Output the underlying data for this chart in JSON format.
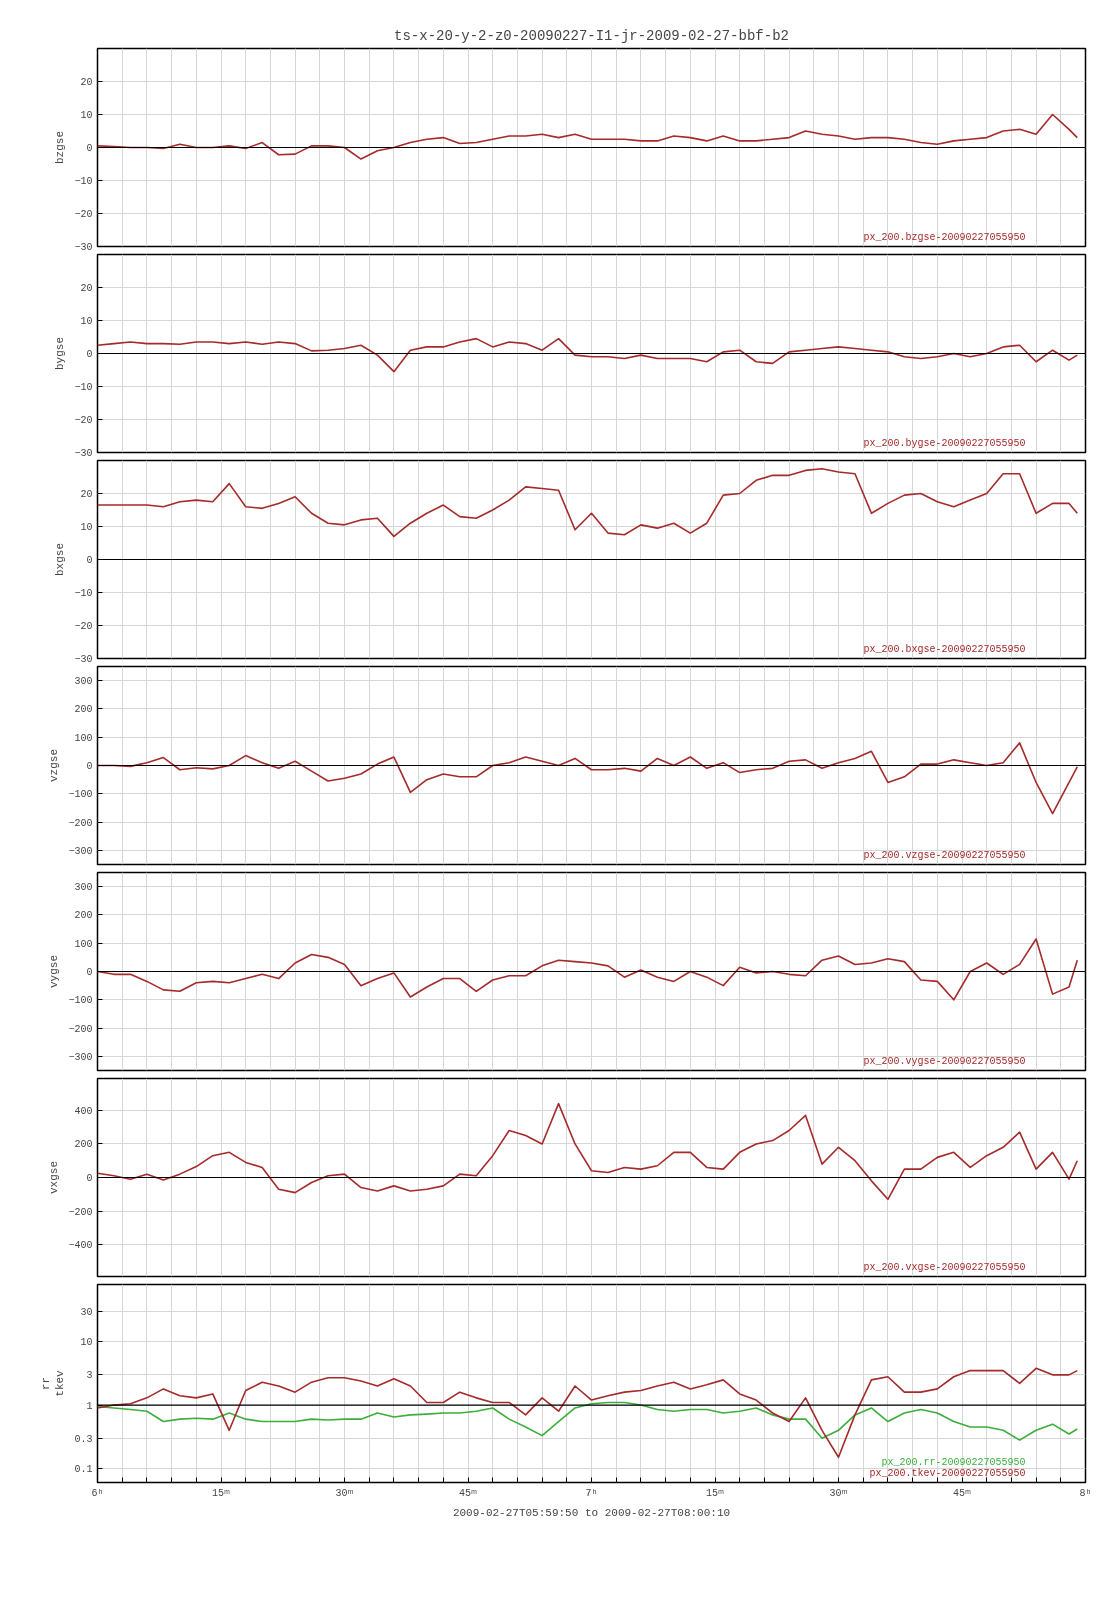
{
  "chart_data": [
    {
      "type": "line",
      "title": "ts-x-20-y-2-z0-20090227-I1-jr-2009-02-27-bbf-b2",
      "ylabel": "bzgse",
      "xlim": [
        "2009-02-27T06:00",
        "2009-02-27T08:00"
      ],
      "ylim": [
        -30,
        30
      ],
      "yticks": [
        -30,
        -20,
        -10,
        0,
        10,
        20
      ],
      "tick_labels": "y",
      "grid": true,
      "ref_lines": [
        {
          "axis": "y",
          "value": 0,
          "color": "#000000"
        }
      ],
      "xticks": [
        "2009-02-27T06:00",
        "2009-02-27T06:03",
        "2009-02-27T06:06",
        "2009-02-27T06:09",
        "2009-02-27T06:12",
        "2009-02-27T06:15",
        "2009-02-27T06:18",
        "2009-02-27T06:21",
        "2009-02-27T06:24",
        "2009-02-27T06:27",
        "2009-02-27T06:30",
        "2009-02-27T06:33",
        "2009-02-27T06:36",
        "2009-02-27T06:39",
        "2009-02-27T06:42",
        "2009-02-27T06:45",
        "2009-02-27T06:48",
        "2009-02-27T06:51",
        "2009-02-27T06:54",
        "2009-02-27T06:57",
        "2009-02-27T07:00",
        "2009-02-27T07:03",
        "2009-02-27T07:06",
        "2009-02-27T07:09",
        "2009-02-27T07:12",
        "2009-02-27T07:15",
        "2009-02-27T07:18",
        "2009-02-27T07:21",
        "2009-02-27T07:24",
        "2009-02-27T07:27",
        "2009-02-27T07:30",
        "2009-02-27T07:33",
        "2009-02-27T07:36",
        "2009-02-27T07:39",
        "2009-02-27T07:42",
        "2009-02-27T07:45",
        "2009-02-27T07:48",
        "2009-02-27T07:51",
        "2009-02-27T07:54",
        "2009-02-27T07:57",
        "2009-02-27T08:00"
      ],
      "x": [
        "2009-02-27T06:00",
        "2009-02-27T06:02",
        "2009-02-27T06:04",
        "2009-02-27T06:06",
        "2009-02-27T06:08",
        "2009-02-27T06:10",
        "2009-02-27T06:12",
        "2009-02-27T06:14",
        "2009-02-27T06:16",
        "2009-02-27T06:18",
        "2009-02-27T06:20",
        "2009-02-27T06:22",
        "2009-02-27T06:24",
        "2009-02-27T06:26",
        "2009-02-27T06:28",
        "2009-02-27T06:30",
        "2009-02-27T06:32",
        "2009-02-27T06:34",
        "2009-02-27T06:36",
        "2009-02-27T06:38",
        "2009-02-27T06:40",
        "2009-02-27T06:42",
        "2009-02-27T06:44",
        "2009-02-27T06:46",
        "2009-02-27T06:48",
        "2009-02-27T06:50",
        "2009-02-27T06:52",
        "2009-02-27T06:54",
        "2009-02-27T06:56",
        "2009-02-27T06:58",
        "2009-02-27T07:00",
        "2009-02-27T07:02",
        "2009-02-27T07:04",
        "2009-02-27T07:06",
        "2009-02-27T07:08",
        "2009-02-27T07:10",
        "2009-02-27T07:12",
        "2009-02-27T07:14",
        "2009-02-27T07:16",
        "2009-02-27T07:18",
        "2009-02-27T07:20",
        "2009-02-27T07:22",
        "2009-02-27T07:24",
        "2009-02-27T07:26",
        "2009-02-27T07:28",
        "2009-02-27T07:30",
        "2009-02-27T07:32",
        "2009-02-27T07:34",
        "2009-02-27T07:36",
        "2009-02-27T07:38",
        "2009-02-27T07:40",
        "2009-02-27T07:42",
        "2009-02-27T07:44",
        "2009-02-27T07:46",
        "2009-02-27T07:48",
        "2009-02-27T07:50",
        "2009-02-27T07:52",
        "2009-02-27T07:54",
        "2009-02-27T07:56",
        "2009-02-27T07:58",
        "2009-02-27T07:59"
      ],
      "series": [
        {
          "name": "px_200.bzgse-20090227055950",
          "color": "#a52a2a",
          "values": [
            0.5,
            0.3,
            0,
            0,
            -0.3,
            1,
            0,
            0,
            0.5,
            -0.3,
            1.5,
            -2.2,
            -2,
            0.5,
            0.5,
            0,
            -3.5,
            -1,
            0,
            1.5,
            2.5,
            3,
            1.2,
            1.5,
            2.5,
            3.5,
            3.5,
            4,
            3,
            4,
            2.5,
            2.5,
            2.5,
            2,
            2,
            3.5,
            3,
            2,
            3.5,
            2,
            2,
            2.5,
            3,
            5,
            4,
            3.5,
            2.5,
            3,
            3,
            2.5,
            1.5,
            1,
            2,
            2.5,
            3,
            5,
            5.5,
            4,
            10,
            5.5,
            3
          ]
        }
      ]
    },
    {
      "type": "line",
      "ylabel": "bygse",
      "xlim": [
        "2009-02-27T06:00",
        "2009-02-27T08:00"
      ],
      "ylim": [
        -30,
        30
      ],
      "yticks": [
        -30,
        -20,
        -10,
        0,
        10,
        20
      ],
      "tick_labels": "y",
      "grid": true,
      "ref_lines": [
        {
          "axis": "y",
          "value": 0,
          "color": "#000000"
        }
      ],
      "xticks": [
        "2009-02-27T06:00",
        "2009-02-27T06:03",
        "2009-02-27T06:06",
        "2009-02-27T06:09",
        "2009-02-27T06:12",
        "2009-02-27T06:15",
        "2009-02-27T06:18",
        "2009-02-27T06:21",
        "2009-02-27T06:24",
        "2009-02-27T06:27",
        "2009-02-27T06:30",
        "2009-02-27T06:33",
        "2009-02-27T06:36",
        "2009-02-27T06:39",
        "2009-02-27T06:42",
        "2009-02-27T06:45",
        "2009-02-27T06:48",
        "2009-02-27T06:51",
        "2009-02-27T06:54",
        "2009-02-27T06:57",
        "2009-02-27T07:00",
        "2009-02-27T07:03",
        "2009-02-27T07:06",
        "2009-02-27T07:09",
        "2009-02-27T07:12",
        "2009-02-27T07:15",
        "2009-02-27T07:18",
        "2009-02-27T07:21",
        "2009-02-27T07:24",
        "2009-02-27T07:27",
        "2009-02-27T07:30",
        "2009-02-27T07:33",
        "2009-02-27T07:36",
        "2009-02-27T07:39",
        "2009-02-27T07:42",
        "2009-02-27T07:45",
        "2009-02-27T07:48",
        "2009-02-27T07:51",
        "2009-02-27T07:54",
        "2009-02-27T07:57",
        "2009-02-27T08:00"
      ],
      "x": [
        "2009-02-27T06:00",
        "2009-02-27T06:02",
        "2009-02-27T06:04",
        "2009-02-27T06:06",
        "2009-02-27T06:08",
        "2009-02-27T06:10",
        "2009-02-27T06:12",
        "2009-02-27T06:14",
        "2009-02-27T06:16",
        "2009-02-27T06:18",
        "2009-02-27T06:20",
        "2009-02-27T06:22",
        "2009-02-27T06:24",
        "2009-02-27T06:26",
        "2009-02-27T06:28",
        "2009-02-27T06:30",
        "2009-02-27T06:32",
        "2009-02-27T06:34",
        "2009-02-27T06:36",
        "2009-02-27T06:38",
        "2009-02-27T06:40",
        "2009-02-27T06:42",
        "2009-02-27T06:44",
        "2009-02-27T06:46",
        "2009-02-27T06:48",
        "2009-02-27T06:50",
        "2009-02-27T06:52",
        "2009-02-27T06:54",
        "2009-02-27T06:56",
        "2009-02-27T06:58",
        "2009-02-27T07:00",
        "2009-02-27T07:02",
        "2009-02-27T07:04",
        "2009-02-27T07:06",
        "2009-02-27T07:08",
        "2009-02-27T07:10",
        "2009-02-27T07:12",
        "2009-02-27T07:14",
        "2009-02-27T07:16",
        "2009-02-27T07:18",
        "2009-02-27T07:20",
        "2009-02-27T07:22",
        "2009-02-27T07:24",
        "2009-02-27T07:26",
        "2009-02-27T07:28",
        "2009-02-27T07:30",
        "2009-02-27T07:32",
        "2009-02-27T07:34",
        "2009-02-27T07:36",
        "2009-02-27T07:38",
        "2009-02-27T07:40",
        "2009-02-27T07:42",
        "2009-02-27T07:44",
        "2009-02-27T07:46",
        "2009-02-27T07:48",
        "2009-02-27T07:50",
        "2009-02-27T07:52",
        "2009-02-27T07:54",
        "2009-02-27T07:56",
        "2009-02-27T07:58",
        "2009-02-27T07:59"
      ],
      "series": [
        {
          "name": "px_200.bygse-20090227055950",
          "color": "#a52a2a",
          "values": [
            2.5,
            3,
            3.5,
            3,
            3,
            2.8,
            3.5,
            3.5,
            3,
            3.5,
            2.8,
            3.5,
            3,
            0.8,
            1,
            1.5,
            2.5,
            -0.5,
            -5.5,
            1,
            2,
            2,
            3.5,
            4.5,
            2,
            3.5,
            3,
            1,
            4.5,
            -0.5,
            -1,
            -1,
            -1.5,
            -0.5,
            -1.5,
            -1.5,
            -1.5,
            -2.5,
            0.5,
            1,
            -2.5,
            -3,
            0.5,
            1,
            1.5,
            2,
            1.5,
            1,
            0.5,
            -1,
            -1.5,
            -1,
            0,
            -1,
            0,
            2,
            2.5,
            -2.5,
            1,
            -2,
            -0.5
          ]
        }
      ]
    },
    {
      "type": "line",
      "ylabel": "bxgse",
      "xlim": [
        "2009-02-27T06:00",
        "2009-02-27T08:00"
      ],
      "ylim": [
        -30,
        30
      ],
      "yticks": [
        -30,
        -20,
        -10,
        0,
        10,
        20
      ],
      "tick_labels": "y",
      "grid": true,
      "ref_lines": [
        {
          "axis": "y",
          "value": 0,
          "color": "#000000"
        }
      ],
      "xticks": [
        "2009-02-27T06:00",
        "2009-02-27T06:03",
        "2009-02-27T06:06",
        "2009-02-27T06:09",
        "2009-02-27T06:12",
        "2009-02-27T06:15",
        "2009-02-27T06:18",
        "2009-02-27T06:21",
        "2009-02-27T06:24",
        "2009-02-27T06:27",
        "2009-02-27T06:30",
        "2009-02-27T06:33",
        "2009-02-27T06:36",
        "2009-02-27T06:39",
        "2009-02-27T06:42",
        "2009-02-27T06:45",
        "2009-02-27T06:48",
        "2009-02-27T06:51",
        "2009-02-27T06:54",
        "2009-02-27T06:57",
        "2009-02-27T07:00",
        "2009-02-27T07:03",
        "2009-02-27T07:06",
        "2009-02-27T07:09",
        "2009-02-27T07:12",
        "2009-02-27T07:15",
        "2009-02-27T07:18",
        "2009-02-27T07:21",
        "2009-02-27T07:24",
        "2009-02-27T07:27",
        "2009-02-27T07:30",
        "2009-02-27T07:33",
        "2009-02-27T07:36",
        "2009-02-27T07:39",
        "2009-02-27T07:42",
        "2009-02-27T07:45",
        "2009-02-27T07:48",
        "2009-02-27T07:51",
        "2009-02-27T07:54",
        "2009-02-27T07:57",
        "2009-02-27T08:00"
      ],
      "x": [
        "2009-02-27T06:00",
        "2009-02-27T06:02",
        "2009-02-27T06:04",
        "2009-02-27T06:06",
        "2009-02-27T06:08",
        "2009-02-27T06:10",
        "2009-02-27T06:12",
        "2009-02-27T06:14",
        "2009-02-27T06:16",
        "2009-02-27T06:18",
        "2009-02-27T06:20",
        "2009-02-27T06:22",
        "2009-02-27T06:24",
        "2009-02-27T06:26",
        "2009-02-27T06:28",
        "2009-02-27T06:30",
        "2009-02-27T06:32",
        "2009-02-27T06:34",
        "2009-02-27T06:36",
        "2009-02-27T06:38",
        "2009-02-27T06:40",
        "2009-02-27T06:42",
        "2009-02-27T06:44",
        "2009-02-27T06:46",
        "2009-02-27T06:48",
        "2009-02-27T06:50",
        "2009-02-27T06:52",
        "2009-02-27T06:54",
        "2009-02-27T06:56",
        "2009-02-27T06:58",
        "2009-02-27T07:00",
        "2009-02-27T07:02",
        "2009-02-27T07:04",
        "2009-02-27T07:06",
        "2009-02-27T07:08",
        "2009-02-27T07:10",
        "2009-02-27T07:12",
        "2009-02-27T07:14",
        "2009-02-27T07:16",
        "2009-02-27T07:18",
        "2009-02-27T07:20",
        "2009-02-27T07:22",
        "2009-02-27T07:24",
        "2009-02-27T07:26",
        "2009-02-27T07:28",
        "2009-02-27T07:30",
        "2009-02-27T07:32",
        "2009-02-27T07:34",
        "2009-02-27T07:36",
        "2009-02-27T07:38",
        "2009-02-27T07:40",
        "2009-02-27T07:42",
        "2009-02-27T07:44",
        "2009-02-27T07:46",
        "2009-02-27T07:48",
        "2009-02-27T07:50",
        "2009-02-27T07:52",
        "2009-02-27T07:54",
        "2009-02-27T07:56",
        "2009-02-27T07:58",
        "2009-02-27T07:59"
      ],
      "series": [
        {
          "name": "px_200.bxgse-20090227055950",
          "color": "#a52a2a",
          "values": [
            16.5,
            16.5,
            16.5,
            16.5,
            16,
            17.5,
            18,
            17.5,
            23,
            16,
            15.5,
            17,
            19,
            14,
            11,
            10.5,
            12,
            12.5,
            7,
            11,
            14,
            16.5,
            13,
            12.5,
            15,
            18,
            22,
            21.5,
            21,
            9,
            14,
            8,
            7.5,
            10.5,
            9.5,
            11,
            8,
            11,
            19.5,
            20,
            24,
            25.5,
            25.5,
            27,
            27.5,
            26.5,
            26,
            14,
            17,
            19.5,
            20,
            17.5,
            16,
            18,
            20,
            26,
            26,
            14,
            17,
            17,
            14
          ]
        }
      ]
    },
    {
      "type": "line",
      "ylabel": "vzgse",
      "xlim": [
        "2009-02-27T06:00",
        "2009-02-27T08:00"
      ],
      "ylim": [
        -350,
        350
      ],
      "yticks": [
        -300,
        -200,
        -100,
        0,
        100,
        200,
        300
      ],
      "tick_labels": "y",
      "grid": true,
      "ref_lines": [
        {
          "axis": "y",
          "value": 0,
          "color": "#000000"
        }
      ],
      "xticks": [
        "2009-02-27T06:00",
        "2009-02-27T06:03",
        "2009-02-27T06:06",
        "2009-02-27T06:09",
        "2009-02-27T06:12",
        "2009-02-27T06:15",
        "2009-02-27T06:18",
        "2009-02-27T06:21",
        "2009-02-27T06:24",
        "2009-02-27T06:27",
        "2009-02-27T06:30",
        "2009-02-27T06:33",
        "2009-02-27T06:36",
        "2009-02-27T06:39",
        "2009-02-27T06:42",
        "2009-02-27T06:45",
        "2009-02-27T06:48",
        "2009-02-27T06:51",
        "2009-02-27T06:54",
        "2009-02-27T06:57",
        "2009-02-27T07:00",
        "2009-02-27T07:03",
        "2009-02-27T07:06",
        "2009-02-27T07:09",
        "2009-02-27T07:12",
        "2009-02-27T07:15",
        "2009-02-27T07:18",
        "2009-02-27T07:21",
        "2009-02-27T07:24",
        "2009-02-27T07:27",
        "2009-02-27T07:30",
        "2009-02-27T07:33",
        "2009-02-27T07:36",
        "2009-02-27T07:39",
        "2009-02-27T07:42",
        "2009-02-27T07:45",
        "2009-02-27T07:48",
        "2009-02-27T07:51",
        "2009-02-27T07:54",
        "2009-02-27T07:57",
        "2009-02-27T08:00"
      ],
      "x": [
        "2009-02-27T06:00",
        "2009-02-27T06:02",
        "2009-02-27T06:04",
        "2009-02-27T06:06",
        "2009-02-27T06:08",
        "2009-02-27T06:10",
        "2009-02-27T06:12",
        "2009-02-27T06:14",
        "2009-02-27T06:16",
        "2009-02-27T06:18",
        "2009-02-27T06:20",
        "2009-02-27T06:22",
        "2009-02-27T06:24",
        "2009-02-27T06:26",
        "2009-02-27T06:28",
        "2009-02-27T06:30",
        "2009-02-27T06:32",
        "2009-02-27T06:34",
        "2009-02-27T06:36",
        "2009-02-27T06:38",
        "2009-02-27T06:40",
        "2009-02-27T06:42",
        "2009-02-27T06:44",
        "2009-02-27T06:46",
        "2009-02-27T06:48",
        "2009-02-27T06:50",
        "2009-02-27T06:52",
        "2009-02-27T06:54",
        "2009-02-27T06:56",
        "2009-02-27T06:58",
        "2009-02-27T07:00",
        "2009-02-27T07:02",
        "2009-02-27T07:04",
        "2009-02-27T07:06",
        "2009-02-27T07:08",
        "2009-02-27T07:10",
        "2009-02-27T07:12",
        "2009-02-27T07:14",
        "2009-02-27T07:16",
        "2009-02-27T07:18",
        "2009-02-27T07:20",
        "2009-02-27T07:22",
        "2009-02-27T07:24",
        "2009-02-27T07:26",
        "2009-02-27T07:28",
        "2009-02-27T07:30",
        "2009-02-27T07:32",
        "2009-02-27T07:34",
        "2009-02-27T07:36",
        "2009-02-27T07:38",
        "2009-02-27T07:40",
        "2009-02-27T07:42",
        "2009-02-27T07:44",
        "2009-02-27T07:46",
        "2009-02-27T07:48",
        "2009-02-27T07:50",
        "2009-02-27T07:52",
        "2009-02-27T07:54",
        "2009-02-27T07:56",
        "2009-02-27T07:58",
        "2009-02-27T07:59"
      ],
      "series": [
        {
          "name": "px_200.vzgse-20090227055950",
          "color": "#a52a2a",
          "values": [
            0,
            0,
            -3,
            10,
            28,
            -15,
            -8,
            -12,
            0,
            35,
            10,
            -10,
            15,
            -20,
            -55,
            -45,
            -30,
            5,
            30,
            -95,
            -50,
            -30,
            -40,
            -40,
            0,
            10,
            30,
            15,
            0,
            25,
            -15,
            -15,
            -10,
            -20,
            25,
            0,
            30,
            -10,
            10,
            -25,
            -15,
            -10,
            15,
            20,
            -10,
            10,
            25,
            50,
            -60,
            -40,
            5,
            5,
            20,
            10,
            0,
            10,
            80,
            -60,
            -170,
            -60,
            -5
          ]
        }
      ]
    },
    {
      "type": "line",
      "ylabel": "vygse",
      "xlim": [
        "2009-02-27T06:00",
        "2009-02-27T08:00"
      ],
      "ylim": [
        -350,
        350
      ],
      "yticks": [
        -300,
        -200,
        -100,
        0,
        100,
        200,
        300
      ],
      "tick_labels": "y",
      "grid": true,
      "ref_lines": [
        {
          "axis": "y",
          "value": 0,
          "color": "#000000"
        }
      ],
      "xticks": [
        "2009-02-27T06:00",
        "2009-02-27T06:03",
        "2009-02-27T06:06",
        "2009-02-27T06:09",
        "2009-02-27T06:12",
        "2009-02-27T06:15",
        "2009-02-27T06:18",
        "2009-02-27T06:21",
        "2009-02-27T06:24",
        "2009-02-27T06:27",
        "2009-02-27T06:30",
        "2009-02-27T06:33",
        "2009-02-27T06:36",
        "2009-02-27T06:39",
        "2009-02-27T06:42",
        "2009-02-27T06:45",
        "2009-02-27T06:48",
        "2009-02-27T06:51",
        "2009-02-27T06:54",
        "2009-02-27T06:57",
        "2009-02-27T07:00",
        "2009-02-27T07:03",
        "2009-02-27T07:06",
        "2009-02-27T07:09",
        "2009-02-27T07:12",
        "2009-02-27T07:15",
        "2009-02-27T07:18",
        "2009-02-27T07:21",
        "2009-02-27T07:24",
        "2009-02-27T07:27",
        "2009-02-27T07:30",
        "2009-02-27T07:33",
        "2009-02-27T07:36",
        "2009-02-27T07:39",
        "2009-02-27T07:42",
        "2009-02-27T07:45",
        "2009-02-27T07:48",
        "2009-02-27T07:51",
        "2009-02-27T07:54",
        "2009-02-27T07:57",
        "2009-02-27T08:00"
      ],
      "x": [
        "2009-02-27T06:00",
        "2009-02-27T06:02",
        "2009-02-27T06:04",
        "2009-02-27T06:06",
        "2009-02-27T06:08",
        "2009-02-27T06:10",
        "2009-02-27T06:12",
        "2009-02-27T06:14",
        "2009-02-27T06:16",
        "2009-02-27T06:18",
        "2009-02-27T06:20",
        "2009-02-27T06:22",
        "2009-02-27T06:24",
        "2009-02-27T06:26",
        "2009-02-27T06:28",
        "2009-02-27T06:30",
        "2009-02-27T06:32",
        "2009-02-27T06:34",
        "2009-02-27T06:36",
        "2009-02-27T06:38",
        "2009-02-27T06:40",
        "2009-02-27T06:42",
        "2009-02-27T06:44",
        "2009-02-27T06:46",
        "2009-02-27T06:48",
        "2009-02-27T06:50",
        "2009-02-27T06:52",
        "2009-02-27T06:54",
        "2009-02-27T06:56",
        "2009-02-27T06:58",
        "2009-02-27T07:00",
        "2009-02-27T07:02",
        "2009-02-27T07:04",
        "2009-02-27T07:06",
        "2009-02-27T07:08",
        "2009-02-27T07:10",
        "2009-02-27T07:12",
        "2009-02-27T07:14",
        "2009-02-27T07:16",
        "2009-02-27T07:18",
        "2009-02-27T07:20",
        "2009-02-27T07:22",
        "2009-02-27T07:24",
        "2009-02-27T07:26",
        "2009-02-27T07:28",
        "2009-02-27T07:30",
        "2009-02-27T07:32",
        "2009-02-27T07:34",
        "2009-02-27T07:36",
        "2009-02-27T07:38",
        "2009-02-27T07:40",
        "2009-02-27T07:42",
        "2009-02-27T07:44",
        "2009-02-27T07:46",
        "2009-02-27T07:48",
        "2009-02-27T07:50",
        "2009-02-27T07:52",
        "2009-02-27T07:54",
        "2009-02-27T07:56",
        "2009-02-27T07:58",
        "2009-02-27T07:59"
      ],
      "series": [
        {
          "name": "px_200.vygse-20090227055950",
          "color": "#a52a2a",
          "values": [
            0,
            -10,
            -10,
            -35,
            -65,
            -70,
            -40,
            -35,
            -40,
            -25,
            -10,
            -25,
            30,
            60,
            50,
            25,
            -50,
            -25,
            -5,
            -90,
            -55,
            -25,
            -25,
            -70,
            -30,
            -15,
            -15,
            20,
            40,
            35,
            30,
            20,
            -20,
            5,
            -20,
            -35,
            0,
            -20,
            -50,
            15,
            -5,
            0,
            -10,
            -15,
            40,
            55,
            25,
            30,
            45,
            35,
            -30,
            -35,
            -100,
            0,
            30,
            -10,
            25,
            115,
            -80,
            -55,
            40
          ]
        }
      ]
    },
    {
      "type": "line",
      "ylabel": "vxgse",
      "xlim": [
        "2009-02-27T06:00",
        "2009-02-27T08:00"
      ],
      "ylim": [
        -590,
        590
      ],
      "yticks": [
        -400,
        -200,
        0,
        200,
        400
      ],
      "tick_labels": "y",
      "grid": true,
      "ref_lines": [
        {
          "axis": "y",
          "value": 0,
          "color": "#000000"
        }
      ],
      "xticks": [
        "2009-02-27T06:00",
        "2009-02-27T06:03",
        "2009-02-27T06:06",
        "2009-02-27T06:09",
        "2009-02-27T06:12",
        "2009-02-27T06:15",
        "2009-02-27T06:18",
        "2009-02-27T06:21",
        "2009-02-27T06:24",
        "2009-02-27T06:27",
        "2009-02-27T06:30",
        "2009-02-27T06:33",
        "2009-02-27T06:36",
        "2009-02-27T06:39",
        "2009-02-27T06:42",
        "2009-02-27T06:45",
        "2009-02-27T06:48",
        "2009-02-27T06:51",
        "2009-02-27T06:54",
        "2009-02-27T06:57",
        "2009-02-27T07:00",
        "2009-02-27T07:03",
        "2009-02-27T07:06",
        "2009-02-27T07:09",
        "2009-02-27T07:12",
        "2009-02-27T07:15",
        "2009-02-27T07:18",
        "2009-02-27T07:21",
        "2009-02-27T07:24",
        "2009-02-27T07:27",
        "2009-02-27T07:30",
        "2009-02-27T07:33",
        "2009-02-27T07:36",
        "2009-02-27T07:39",
        "2009-02-27T07:42",
        "2009-02-27T07:45",
        "2009-02-27T07:48",
        "2009-02-27T07:51",
        "2009-02-27T07:54",
        "2009-02-27T07:57",
        "2009-02-27T08:00"
      ],
      "x": [
        "2009-02-27T06:00",
        "2009-02-27T06:02",
        "2009-02-27T06:04",
        "2009-02-27T06:06",
        "2009-02-27T06:08",
        "2009-02-27T06:10",
        "2009-02-27T06:12",
        "2009-02-27T06:14",
        "2009-02-27T06:16",
        "2009-02-27T06:18",
        "2009-02-27T06:20",
        "2009-02-27T06:22",
        "2009-02-27T06:24",
        "2009-02-27T06:26",
        "2009-02-27T06:28",
        "2009-02-27T06:30",
        "2009-02-27T06:32",
        "2009-02-27T06:34",
        "2009-02-27T06:36",
        "2009-02-27T06:38",
        "2009-02-27T06:40",
        "2009-02-27T06:42",
        "2009-02-27T06:44",
        "2009-02-27T06:46",
        "2009-02-27T06:48",
        "2009-02-27T06:50",
        "2009-02-27T06:52",
        "2009-02-27T06:54",
        "2009-02-27T06:56",
        "2009-02-27T06:58",
        "2009-02-27T07:00",
        "2009-02-27T07:02",
        "2009-02-27T07:04",
        "2009-02-27T07:06",
        "2009-02-27T07:08",
        "2009-02-27T07:10",
        "2009-02-27T07:12",
        "2009-02-27T07:14",
        "2009-02-27T07:16",
        "2009-02-27T07:18",
        "2009-02-27T07:20",
        "2009-02-27T07:22",
        "2009-02-27T07:24",
        "2009-02-27T07:26",
        "2009-02-27T07:28",
        "2009-02-27T07:30",
        "2009-02-27T07:32",
        "2009-02-27T07:34",
        "2009-02-27T07:36",
        "2009-02-27T07:38",
        "2009-02-27T07:40",
        "2009-02-27T07:42",
        "2009-02-27T07:44",
        "2009-02-27T07:46",
        "2009-02-27T07:48",
        "2009-02-27T07:50",
        "2009-02-27T07:52",
        "2009-02-27T07:54",
        "2009-02-27T07:56",
        "2009-02-27T07:58",
        "2009-02-27T07:59"
      ],
      "series": [
        {
          "name": "px_200.vxgse-20090227055950",
          "color": "#a52a2a",
          "values": [
            25,
            10,
            -10,
            20,
            -15,
            20,
            65,
            130,
            150,
            90,
            60,
            -70,
            -90,
            -30,
            10,
            20,
            -60,
            -80,
            -50,
            -80,
            -70,
            -50,
            20,
            10,
            130,
            280,
            250,
            200,
            440,
            200,
            40,
            30,
            60,
            50,
            70,
            150,
            150,
            60,
            50,
            150,
            200,
            220,
            280,
            370,
            80,
            180,
            100,
            -20,
            -130,
            50,
            50,
            120,
            150,
            60,
            130,
            180,
            270,
            50,
            150,
            -10,
            100
          ]
        }
      ]
    },
    {
      "type": "line",
      "ylabel": "rr\ntkev",
      "xlabel": "2009-02-27T05:59:50 to 2009-02-27T08:00:10",
      "log": "y",
      "xlim": [
        "2009-02-27T06:00",
        "2009-02-27T08:00"
      ],
      "ylim": [
        0.06,
        80
      ],
      "yticks": [
        0.1,
        0.3,
        1,
        3,
        10,
        30
      ],
      "grid": true,
      "ref_lines": [
        {
          "axis": "y",
          "value": 1,
          "color": "#000000"
        }
      ],
      "xticks": [
        {
          "value": "2009-02-27T06:00",
          "label": "6ʰ"
        },
        {
          "value": "2009-02-27T06:03",
          "label": null
        },
        {
          "value": "2009-02-27T06:06",
          "label": null
        },
        {
          "value": "2009-02-27T06:09",
          "label": null
        },
        {
          "value": "2009-02-27T06:12",
          "label": null
        },
        {
          "value": "2009-02-27T06:15",
          "label": "15ᵐ"
        },
        {
          "value": "2009-02-27T06:18",
          "label": null
        },
        {
          "value": "2009-02-27T06:21",
          "label": null
        },
        {
          "value": "2009-02-27T06:24",
          "label": null
        },
        {
          "value": "2009-02-27T06:27",
          "label": null
        },
        {
          "value": "2009-02-27T06:30",
          "label": "30ᵐ"
        },
        {
          "value": "2009-02-27T06:33",
          "label": null
        },
        {
          "value": "2009-02-27T06:36",
          "label": null
        },
        {
          "value": "2009-02-27T06:39",
          "label": null
        },
        {
          "value": "2009-02-27T06:42",
          "label": null
        },
        {
          "value": "2009-02-27T06:45",
          "label": "45ᵐ"
        },
        {
          "value": "2009-02-27T06:48",
          "label": null
        },
        {
          "value": "2009-02-27T06:51",
          "label": null
        },
        {
          "value": "2009-02-27T06:54",
          "label": null
        },
        {
          "value": "2009-02-27T06:57",
          "label": null
        },
        {
          "value": "2009-02-27T07:00",
          "label": "7ʰ"
        },
        {
          "value": "2009-02-27T07:03",
          "label": null
        },
        {
          "value": "2009-02-27T07:06",
          "label": null
        },
        {
          "value": "2009-02-27T07:09",
          "label": null
        },
        {
          "value": "2009-02-27T07:12",
          "label": null
        },
        {
          "value": "2009-02-27T07:15",
          "label": "15ᵐ"
        },
        {
          "value": "2009-02-27T07:18",
          "label": null
        },
        {
          "value": "2009-02-27T07:21",
          "label": null
        },
        {
          "value": "2009-02-27T07:24",
          "label": null
        },
        {
          "value": "2009-02-27T07:27",
          "label": null
        },
        {
          "value": "2009-02-27T07:30",
          "label": "30ᵐ"
        },
        {
          "value": "2009-02-27T07:33",
          "label": null
        },
        {
          "value": "2009-02-27T07:36",
          "label": null
        },
        {
          "value": "2009-02-27T07:39",
          "label": null
        },
        {
          "value": "2009-02-27T07:42",
          "label": null
        },
        {
          "value": "2009-02-27T07:45",
          "label": "45ᵐ"
        },
        {
          "value": "2009-02-27T07:48",
          "label": null
        },
        {
          "value": "2009-02-27T07:51",
          "label": null
        },
        {
          "value": "2009-02-27T07:54",
          "label": null
        },
        {
          "value": "2009-02-27T07:57",
          "label": null
        },
        {
          "value": "2009-02-27T08:00",
          "label": "8ʰ"
        }
      ],
      "x": [
        "2009-02-27T06:00",
        "2009-02-27T06:02",
        "2009-02-27T06:04",
        "2009-02-27T06:06",
        "2009-02-27T06:08",
        "2009-02-27T06:10",
        "2009-02-27T06:12",
        "2009-02-27T06:14",
        "2009-02-27T06:16",
        "2009-02-27T06:18",
        "2009-02-27T06:20",
        "2009-02-27T06:22",
        "2009-02-27T06:24",
        "2009-02-27T06:26",
        "2009-02-27T06:28",
        "2009-02-27T06:30",
        "2009-02-27T06:32",
        "2009-02-27T06:34",
        "2009-02-27T06:36",
        "2009-02-27T06:38",
        "2009-02-27T06:40",
        "2009-02-27T06:42",
        "2009-02-27T06:44",
        "2009-02-27T06:46",
        "2009-02-27T06:48",
        "2009-02-27T06:50",
        "2009-02-27T06:52",
        "2009-02-27T06:54",
        "2009-02-27T06:56",
        "2009-02-27T06:58",
        "2009-02-27T07:00",
        "2009-02-27T07:02",
        "2009-02-27T07:04",
        "2009-02-27T07:06",
        "2009-02-27T07:08",
        "2009-02-27T07:10",
        "2009-02-27T07:12",
        "2009-02-27T07:14",
        "2009-02-27T07:16",
        "2009-02-27T07:18",
        "2009-02-27T07:20",
        "2009-02-27T07:22",
        "2009-02-27T07:24",
        "2009-02-27T07:26",
        "2009-02-27T07:28",
        "2009-02-27T07:30",
        "2009-02-27T07:32",
        "2009-02-27T07:34",
        "2009-02-27T07:36",
        "2009-02-27T07:38",
        "2009-02-27T07:40",
        "2009-02-27T07:42",
        "2009-02-27T07:44",
        "2009-02-27T07:46",
        "2009-02-27T07:48",
        "2009-02-27T07:50",
        "2009-02-27T07:52",
        "2009-02-27T07:54",
        "2009-02-27T07:56",
        "2009-02-27T07:58",
        "2009-02-27T07:59"
      ],
      "series": [
        {
          "name": "px_200.rr-20090227055950",
          "color": "#3cae3c",
          "values": [
            0.95,
            0.9,
            0.85,
            0.8,
            0.55,
            0.6,
            0.62,
            0.6,
            0.75,
            0.6,
            0.55,
            0.55,
            0.55,
            0.6,
            0.58,
            0.6,
            0.6,
            0.75,
            0.65,
            0.7,
            0.72,
            0.75,
            0.75,
            0.8,
            0.9,
            0.6,
            0.45,
            0.33,
            0.55,
            0.9,
            1.05,
            1.1,
            1.1,
            1.0,
            0.85,
            0.8,
            0.85,
            0.85,
            0.75,
            0.8,
            0.9,
            0.7,
            0.6,
            0.6,
            0.3,
            0.4,
            0.7,
            0.9,
            0.55,
            0.75,
            0.85,
            0.75,
            0.55,
            0.45,
            0.45,
            0.4,
            0.28,
            0.4,
            0.5,
            0.35,
            0.42
          ]
        },
        {
          "name": "px_200.tkev-20090227055950",
          "color": "#a52a2a",
          "values": [
            0.9,
            1.0,
            1.05,
            1.3,
            1.8,
            1.4,
            1.3,
            1.5,
            0.4,
            1.7,
            2.3,
            2.0,
            1.6,
            2.3,
            2.7,
            2.7,
            2.4,
            2.0,
            2.6,
            2.0,
            1.1,
            1.1,
            1.6,
            1.3,
            1.1,
            1.1,
            0.7,
            1.3,
            0.8,
            2.0,
            1.2,
            1.4,
            1.6,
            1.7,
            2.0,
            2.3,
            1.8,
            2.1,
            2.5,
            1.5,
            1.2,
            0.75,
            0.55,
            1.3,
            0.4,
            0.15,
            0.7,
            2.5,
            2.8,
            1.6,
            1.6,
            1.8,
            2.8,
            3.5,
            3.5,
            3.5,
            2.2,
            3.8,
            3.0,
            3.0,
            3.5
          ]
        }
      ]
    }
  ]
}
